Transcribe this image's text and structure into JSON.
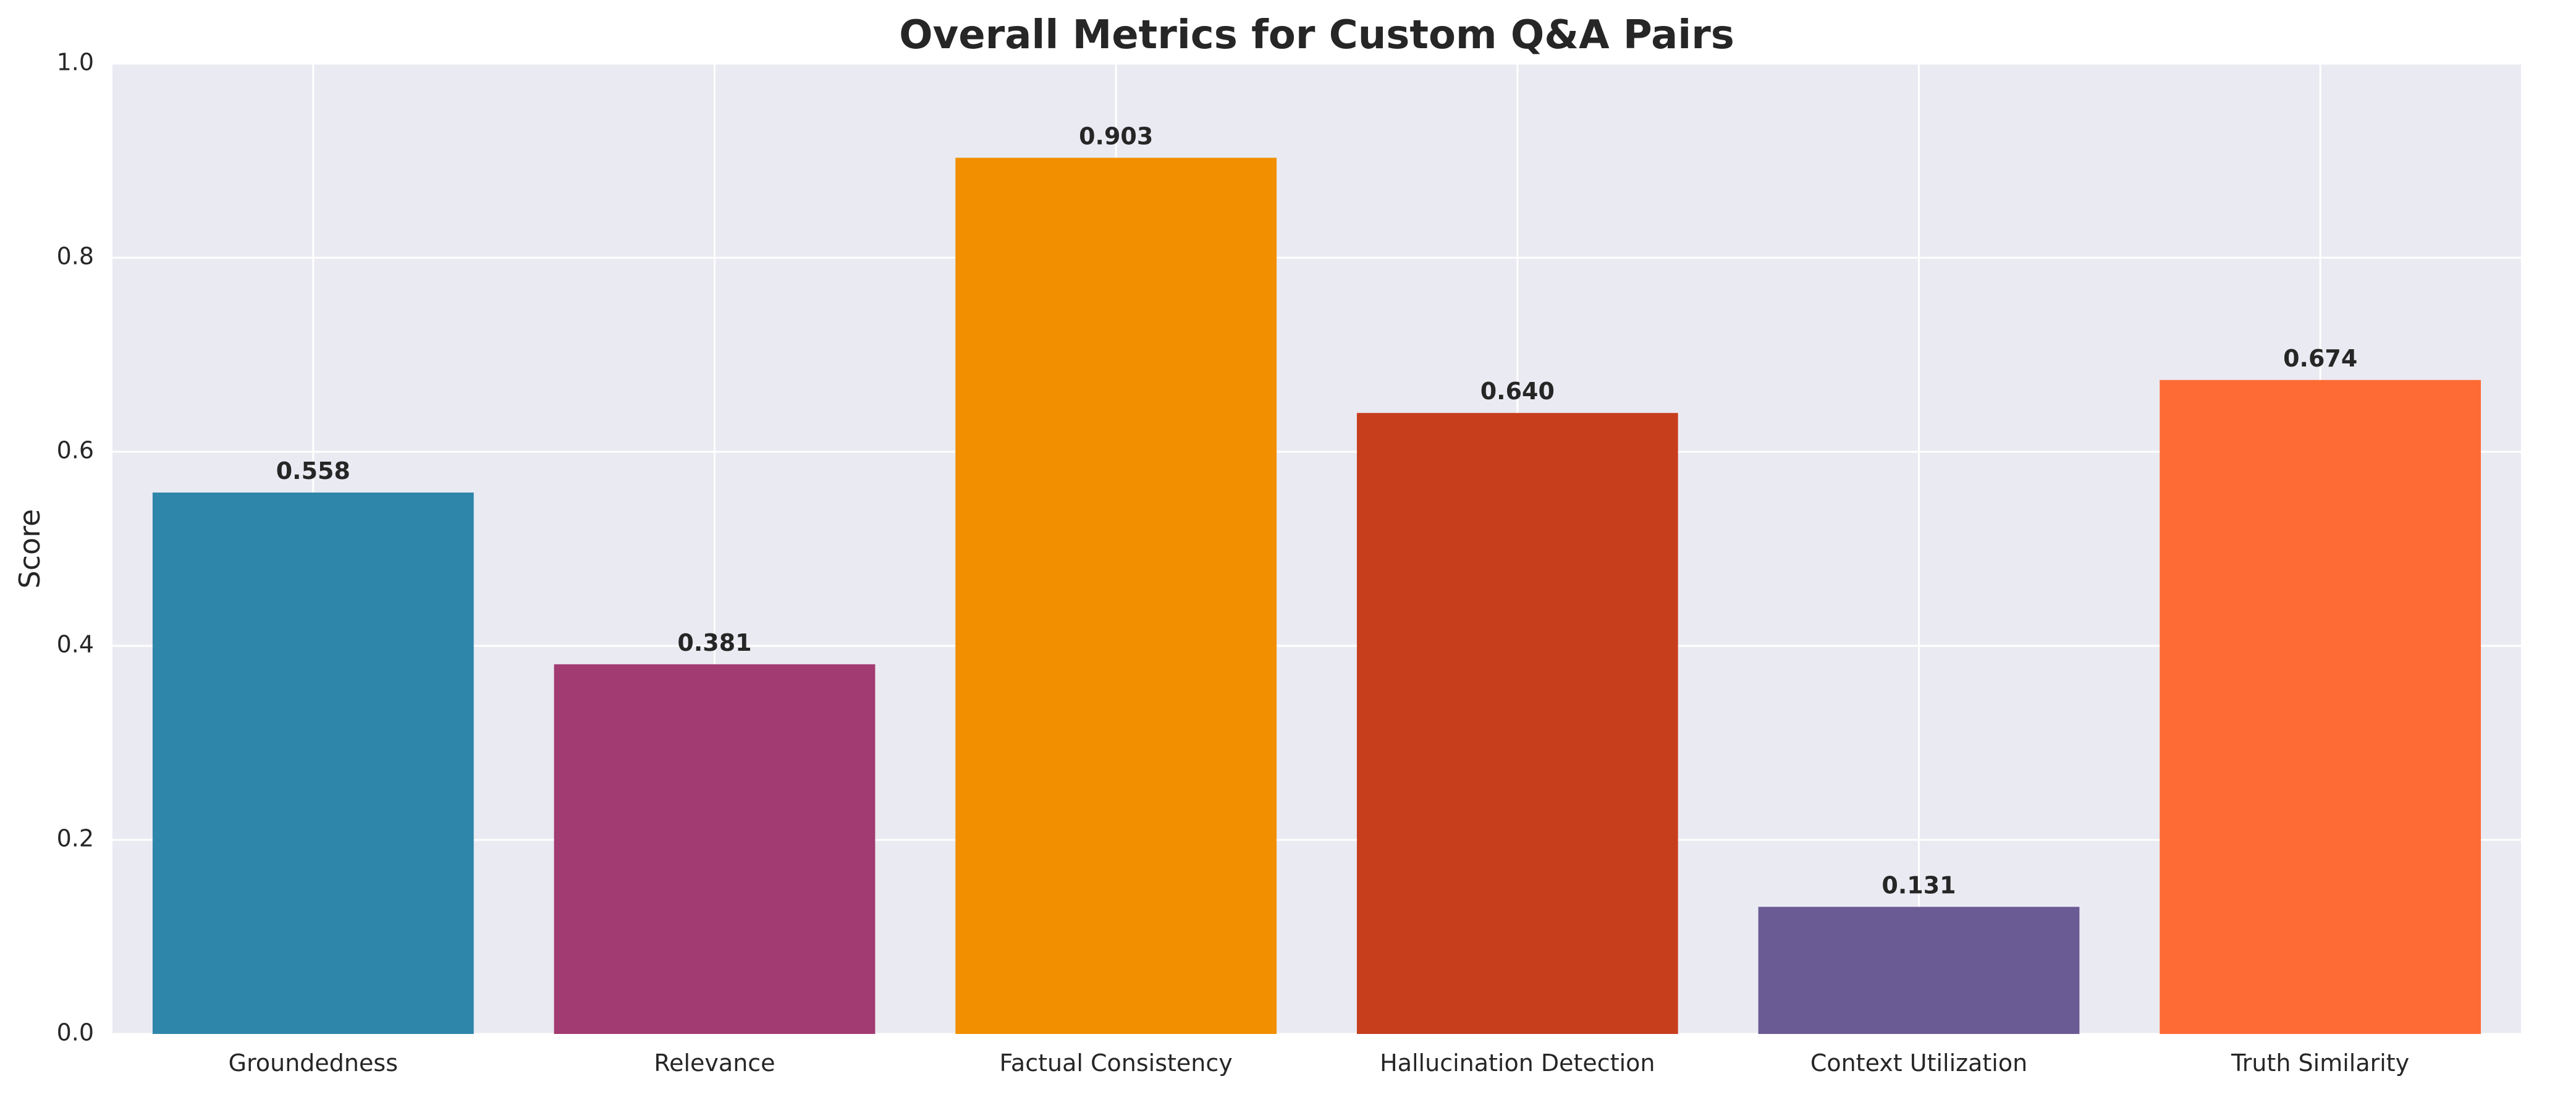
{
  "chart_data": {
    "type": "bar",
    "title": "Overall Metrics for Custom Q&A Pairs",
    "xlabel": "",
    "ylabel": "Score",
    "ylim": [
      0,
      1.0
    ],
    "yticks": [
      0.0,
      0.2,
      0.4,
      0.6,
      0.8,
      1.0
    ],
    "ytick_labels": [
      "0.0",
      "0.2",
      "0.4",
      "0.6",
      "0.8",
      "1.0"
    ],
    "grid": true,
    "legend": false,
    "categories": [
      "Groundedness",
      "Relevance",
      "Factual Consistency",
      "Hallucination Detection",
      "Context Utilization",
      "Truth Similarity"
    ],
    "values": [
      0.558,
      0.381,
      0.903,
      0.64,
      0.131,
      0.674
    ],
    "value_labels": [
      "0.558",
      "0.381",
      "0.903",
      "0.640",
      "0.131",
      "0.674"
    ],
    "colors": [
      "#2E86AB",
      "#A23B72",
      "#F18F01",
      "#C73E1D",
      "#6A5B95",
      "#FF6B35"
    ],
    "background_color": "#EAEAF2",
    "grid_color": "#FFFFFF"
  }
}
